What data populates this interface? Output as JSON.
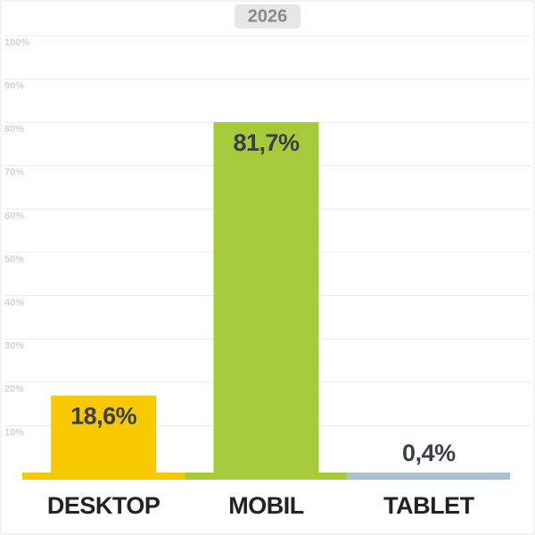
{
  "chart_data": {
    "type": "bar",
    "title": "2026",
    "categories": [
      "DESKTOP",
      "MOBIL",
      "TABLET"
    ],
    "values": [
      18.6,
      81.7,
      0.4
    ],
    "value_labels": [
      "18,6%",
      "81,7%",
      "0,4%"
    ],
    "colors": [
      "#f8c800",
      "#a6ca3b",
      "#a9c3d1"
    ],
    "ylim": [
      0,
      100
    ],
    "yticks": [
      {
        "value": 10,
        "label": "10%"
      },
      {
        "value": 20,
        "label": "20%"
      },
      {
        "value": 30,
        "label": "30%"
      },
      {
        "value": 40,
        "label": "40%"
      },
      {
        "value": 50,
        "label": "50%"
      },
      {
        "value": 60,
        "label": "60%"
      },
      {
        "value": 70,
        "label": "70%"
      },
      {
        "value": 80,
        "label": "80%"
      },
      {
        "value": 90,
        "label": "90%"
      },
      {
        "value": 100,
        "label": "100%"
      }
    ],
    "grid": true
  }
}
